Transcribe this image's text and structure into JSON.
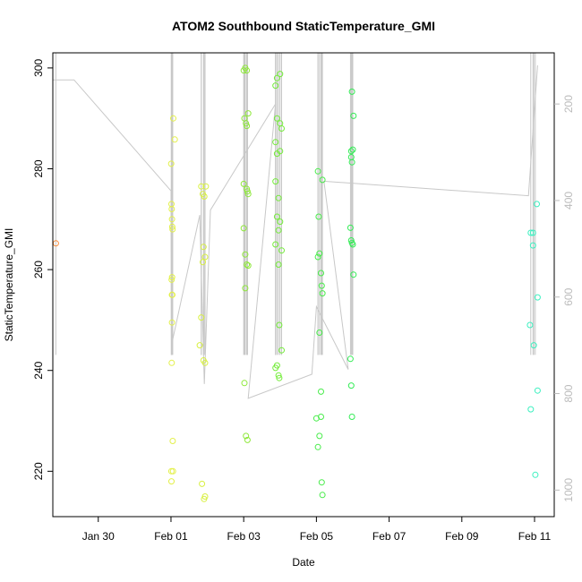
{
  "chart_data": {
    "type": "scatter",
    "title": "ATOM2 Southbound StaticTemperature_GMI",
    "xlabel": "Date",
    "ylabel": "StaticTemperature_GMI",
    "x_ticks": [
      "Jan 30",
      "Feb 01",
      "Feb 03",
      "Feb 05",
      "Feb 07",
      "Feb 09",
      "Feb 11"
    ],
    "y_ticks": [
      220,
      240,
      260,
      280,
      300
    ],
    "y2_ticks": [
      200,
      400,
      600,
      800,
      1000
    ],
    "xlim": [
      "2017-01-28T18:00",
      "2017-02-11T13:00"
    ],
    "ylim": [
      211,
      303
    ],
    "y2lim_inverted": [
      94,
      1055
    ],
    "y2_scale": "pressure (inverted, grey)",
    "grid": false,
    "legend": "none",
    "colors": {
      "jan28": "#ff8c3a",
      "feb01": "#e3f04a",
      "feb02": "#d8f040",
      "feb03": "#8ee83a",
      "feb04": "#74ec3a",
      "feb05": "#48ec4a",
      "feb06": "#34ec56",
      "feb11": "#3cf0c0",
      "pressure_line": "#c8c8c8"
    },
    "series": [
      {
        "color_key": "jan28",
        "points": [
          [
            "2017-01-28T20:00",
            265.2
          ]
        ]
      },
      {
        "color_key": "feb01",
        "points": [
          [
            "2017-02-01T00:10",
            281
          ],
          [
            "2017-02-01T00:20",
            273
          ],
          [
            "2017-02-01T00:30",
            272
          ],
          [
            "2017-02-01T00:40",
            270
          ],
          [
            "2017-02-01T00:50",
            268.5
          ],
          [
            "2017-02-01T01:00",
            268
          ],
          [
            "2017-02-01T00:25",
            258
          ],
          [
            "2017-02-01T00:35",
            255
          ],
          [
            "2017-02-01T00:40",
            249.5
          ],
          [
            "2017-02-01T00:30",
            241.5
          ],
          [
            "2017-02-01T01:30",
            290
          ],
          [
            "2017-02-01T02:30",
            285.8
          ],
          [
            "2017-02-01T01:10",
            226
          ],
          [
            "2017-02-01T00:15",
            220
          ],
          [
            "2017-02-01T01:20",
            220
          ],
          [
            "2017-02-01T00:20",
            218
          ],
          [
            "2017-02-01T00:45",
            258.5
          ],
          [
            "2017-02-01T00:55",
            255
          ]
        ]
      },
      {
        "color_key": "feb02",
        "points": [
          [
            "2017-02-01T20:00",
            276.5
          ],
          [
            "2017-02-01T21:00",
            275
          ],
          [
            "2017-02-01T22:00",
            274.5
          ],
          [
            "2017-02-01T21:30",
            264.5
          ],
          [
            "2017-02-01T22:30",
            262.5
          ],
          [
            "2017-02-01T21:00",
            261.5
          ],
          [
            "2017-02-01T20:00",
            250.5
          ],
          [
            "2017-02-01T19:00",
            245
          ],
          [
            "2017-02-01T21:30",
            242
          ],
          [
            "2017-02-01T22:30",
            241.5
          ],
          [
            "2017-02-01T20:30",
            217.5
          ],
          [
            "2017-02-01T22:30",
            215
          ],
          [
            "2017-02-01T21:50",
            214.5
          ],
          [
            "2017-02-01T23:00",
            276.5
          ]
        ]
      },
      {
        "color_key": "feb03",
        "points": [
          [
            "2017-02-03T00:00",
            299.5
          ],
          [
            "2017-02-03T01:00",
            300
          ],
          [
            "2017-02-03T02:00",
            299.5
          ],
          [
            "2017-02-03T00:30",
            290
          ],
          [
            "2017-02-03T01:30",
            289
          ],
          [
            "2017-02-03T03:00",
            291
          ],
          [
            "2017-02-03T02:00",
            288.5
          ],
          [
            "2017-02-03T00:00",
            277
          ],
          [
            "2017-02-03T02:00",
            276
          ],
          [
            "2017-02-03T02:30",
            275.5
          ],
          [
            "2017-02-03T03:00",
            275
          ],
          [
            "2017-02-03T00:00",
            268.2
          ],
          [
            "2017-02-03T01:00",
            263
          ],
          [
            "2017-02-03T02:00",
            261
          ],
          [
            "2017-02-03T03:00",
            260.8
          ],
          [
            "2017-02-03T01:00",
            256.3
          ],
          [
            "2017-02-03T00:30",
            237.5
          ],
          [
            "2017-02-03T01:30",
            227
          ],
          [
            "2017-02-03T02:30",
            226.2
          ]
        ]
      },
      {
        "color_key": "feb04",
        "points": [
          [
            "2017-02-03T21:00",
            296.5
          ],
          [
            "2017-02-03T22:00",
            298
          ],
          [
            "2017-02-04T00:00",
            298.8
          ],
          [
            "2017-02-03T22:00",
            290
          ],
          [
            "2017-02-04T00:00",
            289
          ],
          [
            "2017-02-04T01:00",
            288
          ],
          [
            "2017-02-03T21:00",
            285.3
          ],
          [
            "2017-02-03T22:00",
            283
          ],
          [
            "2017-02-04T00:00",
            283.5
          ],
          [
            "2017-02-03T21:00",
            277.5
          ],
          [
            "2017-02-03T23:00",
            274.2
          ],
          [
            "2017-02-03T22:00",
            270.5
          ],
          [
            "2017-02-04T00:00",
            269.5
          ],
          [
            "2017-02-03T23:00",
            267.8
          ],
          [
            "2017-02-03T21:00",
            265
          ],
          [
            "2017-02-04T01:00",
            263.8
          ],
          [
            "2017-02-03T23:00",
            261
          ],
          [
            "2017-02-03T23:30",
            249
          ],
          [
            "2017-02-04T01:00",
            244
          ],
          [
            "2017-02-03T21:00",
            240.5
          ],
          [
            "2017-02-03T22:00",
            241
          ],
          [
            "2017-02-03T23:00",
            239
          ],
          [
            "2017-02-03T23:30",
            238.5
          ]
        ]
      },
      {
        "color_key": "feb05",
        "points": [
          [
            "2017-02-05T01:00",
            279.5
          ],
          [
            "2017-02-05T01:30",
            270.5
          ],
          [
            "2017-02-05T04:00",
            277.8
          ],
          [
            "2017-02-05T01:00",
            262.5
          ],
          [
            "2017-02-05T02:00",
            263.2
          ],
          [
            "2017-02-05T03:00",
            259.3
          ],
          [
            "2017-02-05T03:30",
            256.8
          ],
          [
            "2017-02-05T04:00",
            255.3
          ],
          [
            "2017-02-05T02:00",
            247.5
          ],
          [
            "2017-02-05T03:00",
            235.8
          ],
          [
            "2017-02-05T00:00",
            230.5
          ],
          [
            "2017-02-05T03:00",
            230.8
          ],
          [
            "2017-02-05T02:00",
            227
          ],
          [
            "2017-02-05T01:00",
            224.8
          ],
          [
            "2017-02-05T03:30",
            217.8
          ],
          [
            "2017-02-05T04:00",
            215.3
          ]
        ]
      },
      {
        "color_key": "feb06",
        "points": [
          [
            "2017-02-05T23:30",
            295.3
          ],
          [
            "2017-02-06T00:30",
            290.5
          ],
          [
            "2017-02-05T23:00",
            283.5
          ],
          [
            "2017-02-06T00:00",
            283.8
          ],
          [
            "2017-02-05T23:00",
            282.3
          ],
          [
            "2017-02-05T23:30",
            281.3
          ],
          [
            "2017-02-05T22:30",
            268.3
          ],
          [
            "2017-02-05T23:00",
            265.8
          ],
          [
            "2017-02-05T23:30",
            265.3
          ],
          [
            "2017-02-06T00:00",
            265
          ],
          [
            "2017-02-06T00:30",
            259
          ],
          [
            "2017-02-05T22:30",
            242.3
          ],
          [
            "2017-02-05T23:00",
            237
          ],
          [
            "2017-02-05T23:30",
            230.8
          ]
        ]
      },
      {
        "color_key": "feb11",
        "points": [
          [
            "2017-02-10T21:30",
            267.3
          ],
          [
            "2017-02-10T23:00",
            267.3
          ],
          [
            "2017-02-11T01:30",
            273
          ],
          [
            "2017-02-10T23:00",
            264.8
          ],
          [
            "2017-02-11T02:00",
            254.5
          ],
          [
            "2017-02-10T21:00",
            249
          ],
          [
            "2017-02-10T23:30",
            245
          ],
          [
            "2017-02-11T02:00",
            236
          ],
          [
            "2017-02-10T21:30",
            232.3
          ],
          [
            "2017-02-11T00:30",
            219.3
          ]
        ]
      }
    ],
    "pressure_profile": {
      "axis": "right (inverted)",
      "trace": [
        [
          "2017-01-28T18:00",
          150
        ],
        [
          "2017-01-29T08:00",
          150
        ],
        [
          "2017-02-01T00:00",
          380
        ],
        [
          "2017-02-01T00:20",
          700
        ],
        [
          "2017-02-01T19:00",
          430
        ],
        [
          "2017-02-01T22:00",
          780
        ],
        [
          "2017-02-02T02:00",
          420
        ],
        [
          "2017-02-03T21:00",
          200
        ],
        [
          "2017-02-03T03:00",
          810
        ],
        [
          "2017-02-04T21:00",
          760
        ],
        [
          "2017-02-05T00:00",
          620
        ],
        [
          "2017-02-05T21:00",
          750
        ],
        [
          "2017-02-05T05:00",
          360
        ],
        [
          "2017-02-10T20:00",
          390
        ],
        [
          "2017-02-11T02:00",
          120
        ]
      ]
    }
  }
}
